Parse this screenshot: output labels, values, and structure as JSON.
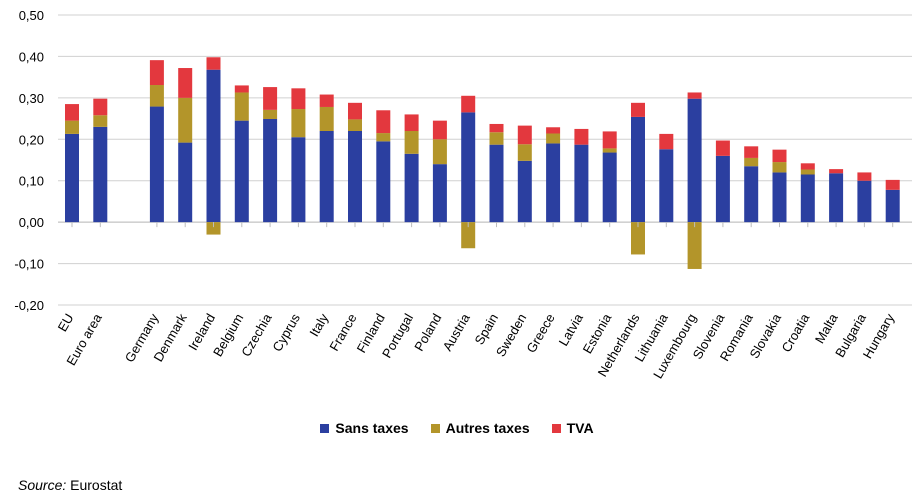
{
  "chart_data": {
    "type": "bar",
    "stacked": true,
    "categories": [
      "EU",
      "Euro area",
      "",
      "Germany",
      "Denmark",
      "Ireland",
      "Belgium",
      "Czechia",
      "Cyprus",
      "Italy",
      "France",
      "Finland",
      "Portugal",
      "Poland",
      "Austria",
      "Spain",
      "Sweden",
      "Greece",
      "Latvia",
      "Estonia",
      "Netherlands",
      "Lithuania",
      "Luxembourg",
      "Slovenia",
      "Romania",
      "Slovakia",
      "Croatia",
      "Malta",
      "Bulgaria",
      "Hungary"
    ],
    "series": [
      {
        "name": "Sans taxes",
        "color": "#2b3fa0",
        "values": [
          0.213,
          0.23,
          null,
          0.279,
          0.192,
          0.368,
          0.245,
          0.249,
          0.205,
          0.22,
          0.22,
          0.195,
          0.165,
          0.14,
          0.265,
          0.187,
          0.148,
          0.19,
          0.187,
          0.168,
          0.254,
          0.176,
          0.298,
          0.16,
          0.135,
          0.12,
          0.115,
          0.118,
          0.1,
          0.078
        ]
      },
      {
        "name": "Autres taxes",
        "color": "#b3952a",
        "values": [
          0.032,
          0.028,
          null,
          0.052,
          0.108,
          -0.03,
          0.068,
          0.022,
          0.068,
          0.058,
          0.028,
          0.02,
          0.055,
          0.06,
          -0.063,
          0.03,
          0.04,
          0.024,
          0.0,
          0.01,
          -0.078,
          0.0,
          -0.113,
          0.0,
          0.02,
          0.025,
          0.012,
          0.0,
          0.0,
          0.0
        ]
      },
      {
        "name": "TVA",
        "color": "#e3383e",
        "values": [
          0.04,
          0.04,
          null,
          0.06,
          0.072,
          0.03,
          0.017,
          0.055,
          0.05,
          0.03,
          0.04,
          0.055,
          0.04,
          0.045,
          0.04,
          0.02,
          0.045,
          0.015,
          0.038,
          0.041,
          0.034,
          0.037,
          0.015,
          0.037,
          0.028,
          0.03,
          0.015,
          0.01,
          0.02,
          0.024
        ]
      }
    ],
    "yticks": [
      "0,50",
      "0,40",
      "0,30",
      "0,20",
      "0,10",
      "0,00",
      "-0,10",
      "-0,20"
    ],
    "ylim": [
      -0.2,
      0.5
    ],
    "grid": true,
    "legend_position": "bottom"
  },
  "legend": [
    {
      "label": "Sans taxes",
      "color": "#2b3fa0"
    },
    {
      "label": "Autres taxes",
      "color": "#b3952a"
    },
    {
      "label": "TVA",
      "color": "#e3383e"
    }
  ],
  "source": {
    "label": "Source:",
    "text": " Eurostat"
  }
}
